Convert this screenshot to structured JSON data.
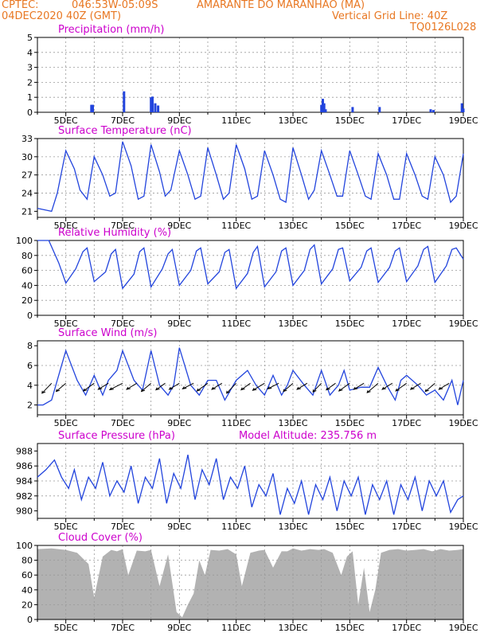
{
  "header": {
    "source": "CPTEC:",
    "coords": "046:53W-05:09S",
    "location": "AMARANTE DO MARANHAO (MA)",
    "date": "04DEC2020 40Z (GMT)",
    "grid_note": "Vertical Grid Line: 40Z",
    "code": "TQ0126L028"
  },
  "colors": {
    "header": "#e87722",
    "panel_title": "#cc00cc",
    "line": "#2244dd",
    "cloud": "#b2b2b2",
    "grid": "#999999"
  },
  "x_ticks": [
    "5DEC",
    "7DEC",
    "9DEC",
    "11DEC",
    "13DEC",
    "15DEC",
    "17DEC",
    "19DEC"
  ],
  "chart_data": [
    {
      "id": "precip",
      "type": "bar",
      "title": "Precipitation (mm/h)",
      "ylim": [
        0,
        5
      ],
      "yticks": [
        "0",
        "1",
        "2",
        "3",
        "4",
        "5"
      ],
      "x_range_days": [
        4.0,
        19.0
      ],
      "points": [
        [
          5.9,
          0.5
        ],
        [
          5.95,
          0.5
        ],
        [
          7.05,
          1.4
        ],
        [
          8.0,
          1.0
        ],
        [
          8.05,
          1.05
        ],
        [
          8.15,
          0.6
        ],
        [
          8.25,
          0.45
        ],
        [
          14.0,
          0.5
        ],
        [
          14.05,
          0.9
        ],
        [
          14.1,
          0.6
        ],
        [
          14.15,
          0.2
        ],
        [
          15.1,
          0.35
        ],
        [
          16.05,
          0.35
        ],
        [
          17.85,
          0.2
        ],
        [
          17.95,
          0.15
        ],
        [
          18.95,
          0.6
        ],
        [
          19.0,
          0.25
        ]
      ]
    },
    {
      "id": "temp",
      "type": "line",
      "title": "Surface Temperature (nC)",
      "ylim": [
        20,
        33
      ],
      "yticks": [
        "21",
        "24",
        "27",
        "30",
        "33"
      ],
      "series_days": [
        4.0,
        4.5,
        4.7,
        5.0,
        5.3,
        5.5,
        5.75,
        6.0,
        6.3,
        6.55,
        6.75,
        7.0,
        7.3,
        7.55,
        7.75,
        8.0,
        8.3,
        8.5,
        8.7,
        9.0,
        9.3,
        9.55,
        9.75,
        10.0,
        10.3,
        10.55,
        10.75,
        11.0,
        11.3,
        11.55,
        11.75,
        12.0,
        12.3,
        12.55,
        12.75,
        13.0,
        13.3,
        13.55,
        13.75,
        14.0,
        14.3,
        14.55,
        14.75,
        15.0,
        15.3,
        15.55,
        15.75,
        16.0,
        16.3,
        16.55,
        16.75,
        17.0,
        17.3,
        17.55,
        17.75,
        18.0,
        18.3,
        18.55,
        18.75,
        19.0
      ],
      "series_values": [
        21.5,
        21.0,
        24.0,
        31.0,
        28.0,
        24.5,
        23.0,
        30.0,
        27.0,
        23.5,
        24.0,
        32.5,
        28.5,
        23.0,
        23.5,
        32.0,
        27.5,
        23.5,
        24.5,
        31.0,
        27.0,
        23.0,
        23.5,
        31.5,
        27.0,
        23.0,
        24.0,
        32.0,
        28.0,
        23.0,
        23.5,
        31.0,
        27.0,
        23.0,
        22.5,
        31.5,
        27.0,
        23.0,
        24.5,
        31.0,
        27.0,
        23.5,
        23.5,
        31.0,
        27.0,
        23.5,
        23.0,
        30.5,
        27.0,
        23.0,
        23.0,
        30.5,
        27.0,
        23.5,
        23.0,
        30.0,
        27.0,
        22.5,
        23.5,
        30.5
      ]
    },
    {
      "id": "rh",
      "type": "line",
      "title": "Relative Humidity (%)",
      "ylim": [
        0,
        100
      ],
      "yticks": [
        "0",
        "20",
        "40",
        "60",
        "80",
        "100"
      ],
      "series_days": [
        4.0,
        4.4,
        4.75,
        5.0,
        5.35,
        5.6,
        5.75,
        6.0,
        6.4,
        6.6,
        6.75,
        7.0,
        7.4,
        7.6,
        7.75,
        8.0,
        8.4,
        8.6,
        8.75,
        9.0,
        9.4,
        9.6,
        9.75,
        10.0,
        10.4,
        10.6,
        10.75,
        11.0,
        11.4,
        11.6,
        11.75,
        12.0,
        12.4,
        12.6,
        12.75,
        13.0,
        13.4,
        13.6,
        13.75,
        14.0,
        14.4,
        14.6,
        14.75,
        15.0,
        15.4,
        15.6,
        15.75,
        16.0,
        16.4,
        16.6,
        16.75,
        17.0,
        17.4,
        17.6,
        17.75,
        18.0,
        18.4,
        18.6,
        18.75,
        19.0
      ],
      "series_values": [
        100,
        100,
        70,
        43,
        62,
        85,
        90,
        45,
        58,
        82,
        88,
        36,
        55,
        85,
        90,
        38,
        62,
        82,
        88,
        40,
        60,
        86,
        90,
        42,
        58,
        84,
        88,
        36,
        56,
        84,
        92,
        38,
        58,
        86,
        90,
        40,
        60,
        88,
        94,
        42,
        62,
        88,
        90,
        46,
        64,
        86,
        90,
        44,
        64,
        86,
        90,
        45,
        66,
        88,
        92,
        44,
        66,
        88,
        90,
        75
      ]
    },
    {
      "id": "wind",
      "type": "line",
      "title": "Surface Wind (m/s)",
      "ylim": [
        1,
        8.5
      ],
      "yticks": [
        "2",
        "4",
        "6",
        "8"
      ],
      "series_days": [
        4.0,
        4.2,
        4.5,
        4.8,
        5.0,
        5.4,
        5.7,
        6.0,
        6.3,
        6.5,
        6.8,
        7.0,
        7.4,
        7.7,
        8.0,
        8.3,
        8.6,
        8.8,
        9.0,
        9.4,
        9.7,
        10.0,
        10.3,
        10.6,
        10.8,
        11.0,
        11.4,
        11.7,
        12.0,
        12.3,
        12.6,
        12.8,
        13.0,
        13.4,
        13.7,
        14.0,
        14.3,
        14.6,
        14.8,
        15.0,
        15.4,
        15.7,
        16.0,
        16.3,
        16.6,
        16.8,
        17.0,
        17.4,
        17.7,
        18.0,
        18.3,
        18.6,
        18.8,
        19.0
      ],
      "series_values": [
        2.0,
        2.0,
        2.5,
        5.5,
        7.5,
        4.5,
        3.0,
        5.0,
        3.0,
        4.5,
        5.5,
        7.5,
        4.5,
        3.5,
        7.5,
        4.0,
        3.0,
        4.0,
        7.8,
        4.0,
        3.0,
        4.5,
        4.5,
        2.5,
        3.5,
        4.5,
        5.5,
        4.0,
        3.0,
        5.0,
        3.0,
        4.0,
        5.5,
        4.0,
        3.0,
        5.5,
        3.0,
        4.0,
        5.5,
        3.5,
        3.8,
        3.8,
        5.8,
        4.0,
        2.5,
        4.5,
        5.0,
        4.0,
        3.0,
        3.5,
        2.5,
        4.5,
        2.0,
        4.5
      ],
      "arrow_days": [
        4.5,
        5.0,
        6.0,
        6.5,
        7.0,
        7.5,
        8.0,
        8.5,
        9.0,
        9.5,
        10.0,
        10.5,
        11.0,
        11.5,
        12.0,
        12.5,
        13.0,
        13.5,
        14.0,
        14.5,
        15.0,
        15.5,
        16.0,
        16.5,
        17.0,
        17.5,
        18.0,
        18.5
      ],
      "arrow_dirs_deg": [
        60,
        55,
        50,
        45,
        40,
        45,
        55,
        50,
        45,
        40,
        50,
        45,
        60,
        50,
        45,
        40,
        55,
        45,
        60,
        50,
        50,
        45,
        55,
        45,
        50,
        45,
        55,
        45
      ],
      "arrow_speeds": [
        4.0,
        3.5,
        3.5,
        3.0,
        3.5,
        3.0,
        3.5,
        3.0,
        3.0,
        3.0,
        3.5,
        3.0,
        4.0,
        3.0,
        3.5,
        3.0,
        3.5,
        3.0,
        3.5,
        3.0,
        3.5,
        3.0,
        4.0,
        3.0,
        3.5,
        3.0,
        3.5,
        3.0
      ]
    },
    {
      "id": "press",
      "type": "line",
      "title": "Surface Pressure (hPa)",
      "subtitle": "Model Altitude: 235.756 m",
      "ylim": [
        979,
        989
      ],
      "yticks": [
        "980",
        "982",
        "984",
        "986",
        "988"
      ],
      "series_days": [
        4.0,
        4.3,
        4.6,
        4.85,
        5.1,
        5.3,
        5.55,
        5.8,
        6.05,
        6.3,
        6.55,
        6.8,
        7.05,
        7.3,
        7.55,
        7.8,
        8.05,
        8.3,
        8.55,
        8.8,
        9.05,
        9.3,
        9.55,
        9.8,
        10.05,
        10.3,
        10.55,
        10.8,
        11.05,
        11.3,
        11.55,
        11.8,
        12.05,
        12.3,
        12.55,
        12.8,
        13.05,
        13.3,
        13.55,
        13.8,
        14.05,
        14.3,
        14.55,
        14.8,
        15.05,
        15.3,
        15.55,
        15.8,
        16.05,
        16.3,
        16.55,
        16.8,
        17.05,
        17.3,
        17.55,
        17.8,
        18.05,
        18.3,
        18.55,
        18.8,
        19.0
      ],
      "series_values": [
        984.5,
        985.5,
        986.8,
        984.5,
        983.0,
        985.5,
        981.5,
        984.5,
        983.0,
        986.5,
        982.0,
        984.0,
        982.5,
        986.0,
        981.0,
        984.5,
        983.0,
        987.0,
        981.0,
        985.0,
        983.0,
        987.5,
        981.5,
        985.5,
        983.5,
        987.0,
        981.5,
        984.5,
        983.0,
        986.0,
        980.5,
        983.5,
        982.0,
        985.0,
        979.5,
        983.0,
        981.0,
        984.0,
        979.5,
        983.5,
        981.5,
        984.5,
        980.0,
        984.0,
        982.0,
        984.5,
        979.5,
        983.5,
        981.5,
        984.0,
        979.5,
        983.5,
        981.5,
        984.5,
        980.0,
        984.0,
        982.0,
        984.0,
        979.8,
        981.5,
        982.0
      ]
    },
    {
      "id": "cloud",
      "type": "area",
      "title": "Cloud Cover (%)",
      "ylim": [
        0,
        100
      ],
      "yticks": [
        "0",
        "20",
        "40",
        "60",
        "80",
        "100"
      ],
      "series_days": [
        4.0,
        4.5,
        5.0,
        5.4,
        5.8,
        6.0,
        6.3,
        6.6,
        6.8,
        7.0,
        7.2,
        7.5,
        7.8,
        8.0,
        8.3,
        8.6,
        8.9,
        9.1,
        9.3,
        9.5,
        9.7,
        9.9,
        10.1,
        10.4,
        10.7,
        11.0,
        11.2,
        11.5,
        11.8,
        12.0,
        12.3,
        12.6,
        12.8,
        13.0,
        13.3,
        13.6,
        13.9,
        14.1,
        14.4,
        14.7,
        14.9,
        15.1,
        15.3,
        15.5,
        15.7,
        15.9,
        16.1,
        16.4,
        16.7,
        17.0,
        17.3,
        17.6,
        17.9,
        18.2,
        18.5,
        18.8,
        19.0
      ],
      "series_values": [
        95,
        96,
        94,
        90,
        75,
        30,
        85,
        94,
        92,
        95,
        60,
        93,
        92,
        94,
        45,
        88,
        10,
        3,
        20,
        35,
        80,
        60,
        94,
        93,
        95,
        88,
        45,
        90,
        93,
        94,
        70,
        92,
        92,
        96,
        93,
        95,
        94,
        95,
        90,
        60,
        85,
        92,
        20,
        70,
        10,
        40,
        90,
        94,
        95,
        93,
        94,
        95,
        92,
        95,
        93,
        94,
        95
      ]
    }
  ]
}
